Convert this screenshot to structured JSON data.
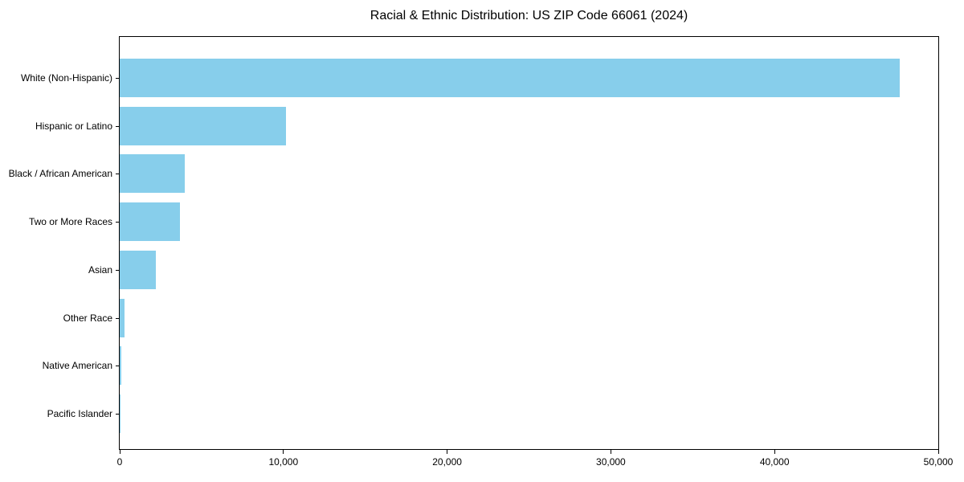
{
  "figure": {
    "title": "Racial & Ethnic Distribution: US ZIP Code 66061 (2024)"
  },
  "chart_data": {
    "type": "bar",
    "orientation": "horizontal",
    "title": "Racial & Ethnic Distribution: US ZIP Code 66061 (2024)",
    "categories": [
      "White (Non-Hispanic)",
      "Hispanic or Latino",
      "Black / African American",
      "Two or More Races",
      "Asian",
      "Other Race",
      "Native American",
      "Pacific Islander"
    ],
    "values": [
      47650,
      10175,
      3970,
      3675,
      2205,
      315,
      100,
      25
    ],
    "xlabel": "",
    "ylabel": "",
    "xlim": [
      0,
      50000
    ],
    "x_ticks": [
      0,
      10000,
      20000,
      30000,
      40000,
      50000
    ],
    "x_tick_labels": [
      "0",
      "10,000",
      "20,000",
      "30,000",
      "40,000",
      "50,000"
    ],
    "bar_color": "#87CEEB",
    "axis_color": "#000000",
    "background_color": "#FFFFFF",
    "grid": false,
    "legend": "none"
  }
}
